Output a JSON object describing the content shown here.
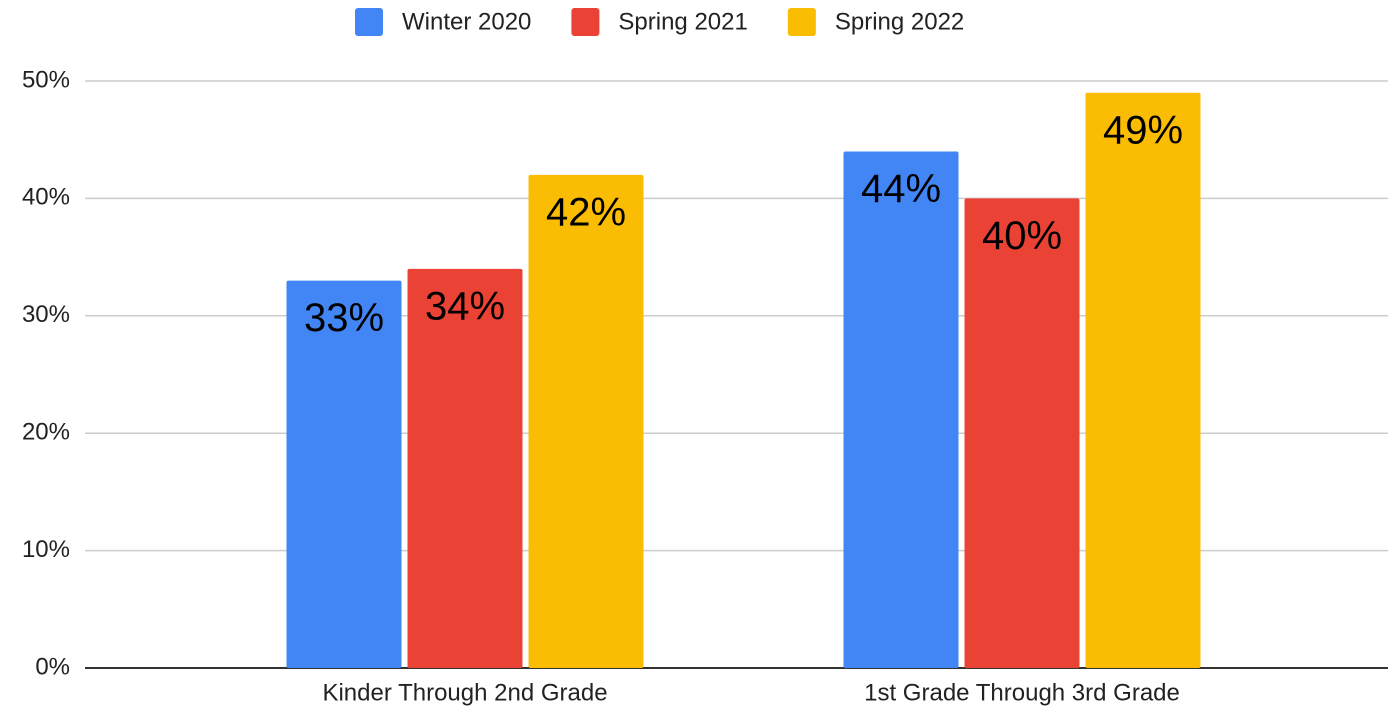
{
  "chart_data": {
    "type": "bar",
    "categories": [
      "Kinder Through 2nd Grade",
      "1st Grade Through 3rd Grade"
    ],
    "series": [
      {
        "name": "Winter 2020",
        "color": "#4285f4",
        "values": [
          33,
          44
        ],
        "value_labels": [
          "33%",
          "44%"
        ]
      },
      {
        "name": "Spring 2021",
        "color": "#ea4335",
        "values": [
          34,
          40
        ],
        "value_labels": [
          "34%",
          "40%"
        ]
      },
      {
        "name": "Spring 2022",
        "color": "#fbbc04",
        "values": [
          42,
          49
        ],
        "value_labels": [
          "42%",
          "49%"
        ]
      }
    ],
    "ylim": [
      0,
      50
    ],
    "yticks": [
      {
        "value": 0,
        "label": "0%"
      },
      {
        "value": 10,
        "label": "10%"
      },
      {
        "value": 20,
        "label": "20%"
      },
      {
        "value": 30,
        "label": "30%"
      },
      {
        "value": 40,
        "label": "40%"
      },
      {
        "value": 50,
        "label": "50%"
      }
    ],
    "grid": true,
    "legend": "top"
  }
}
